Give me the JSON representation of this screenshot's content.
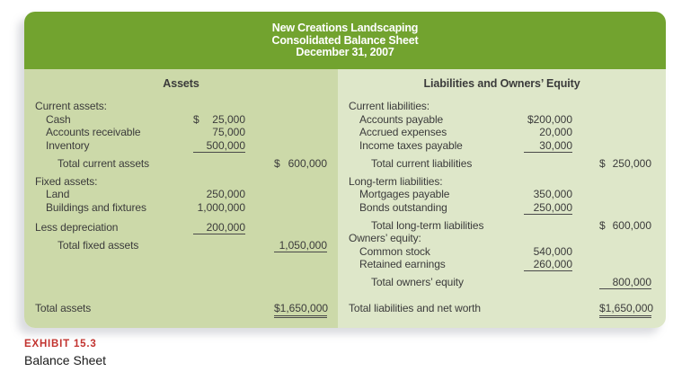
{
  "title": {
    "line1": "New Creations Landscaping",
    "line2": "Consolidated Balance Sheet",
    "line3": "December 31, 2007"
  },
  "colors": {
    "header_green": "#72a32f",
    "panel_left_sage": "#ccd9a9",
    "panel_right_sage": "#dee7c9",
    "text": "#3b3b3b",
    "exhibit_red": "#c2332f"
  },
  "left": {
    "heading": "Assets",
    "rows": [
      {
        "label": "Current assets:",
        "indent": 0
      },
      {
        "label": "Cash",
        "indent": 1,
        "amount": {
          "col": "inner",
          "split": true,
          "currency": "$",
          "value": "25,000"
        }
      },
      {
        "label": "Accounts receivable",
        "indent": 1,
        "amount": {
          "col": "inner",
          "display": "75,000"
        }
      },
      {
        "label": "Inventory",
        "indent": 1,
        "amount": {
          "col": "inner",
          "display": "500,000",
          "underline": "single"
        }
      },
      {
        "label": "Total current assets",
        "indent": 2,
        "amount": {
          "col": "outer",
          "split": true,
          "currency": "$",
          "value": "600,000"
        }
      },
      {
        "label": "Fixed assets:",
        "indent": 0,
        "gap": "section"
      },
      {
        "label": "Land",
        "indent": 1,
        "amount": {
          "col": "inner",
          "display": "250,000"
        }
      },
      {
        "label": "Buildings and fixtures",
        "indent": 1,
        "amount": {
          "col": "inner",
          "display": "1,000,000"
        }
      },
      {
        "label": "Less depreciation",
        "indent": 0,
        "gap": "para",
        "amount": {
          "col": "inner",
          "display": "200,000",
          "underline": "single"
        }
      },
      {
        "label": "Total fixed assets",
        "indent": 2,
        "amount": {
          "col": "outer",
          "display": "1,050,000",
          "underline": "single"
        }
      },
      {
        "label": "Total assets",
        "indent": 0,
        "pin": "bottom",
        "amount": {
          "col": "outer",
          "display": "$1,650,000",
          "underline": "double"
        }
      }
    ]
  },
  "right": {
    "heading": "Liabilities and Owners’ Equity",
    "rows": [
      {
        "label": "Current liabilities:",
        "indent": 0
      },
      {
        "label": "Accounts payable",
        "indent": 1,
        "amount": {
          "col": "inner",
          "display": "$200,000"
        }
      },
      {
        "label": "Accrued expenses",
        "indent": 1,
        "amount": {
          "col": "inner",
          "display": "20,000"
        }
      },
      {
        "label": "Income taxes payable",
        "indent": 1,
        "amount": {
          "col": "inner",
          "display": "30,000",
          "underline": "single"
        }
      },
      {
        "label": "Total current liabilities",
        "indent": 2,
        "amount": {
          "col": "outer",
          "split": true,
          "currency": "$",
          "value": "250,000"
        }
      },
      {
        "label": "Long-term liabilities:",
        "indent": 0,
        "gap": "section"
      },
      {
        "label": "Mortgages payable",
        "indent": 1,
        "amount": {
          "col": "inner",
          "display": "350,000"
        }
      },
      {
        "label": "Bonds outstanding",
        "indent": 1,
        "amount": {
          "col": "inner",
          "display": "250,000",
          "underline": "single"
        }
      },
      {
        "label": "Total long-term liabilities",
        "indent": 2,
        "amount": {
          "col": "outer",
          "split": true,
          "currency": "$",
          "value": "600,000"
        }
      },
      {
        "label": "Owners’ equity:",
        "indent": 0
      },
      {
        "label": "Common stock",
        "indent": 1,
        "amount": {
          "col": "inner",
          "display": "540,000"
        }
      },
      {
        "label": "Retained earnings",
        "indent": 1,
        "amount": {
          "col": "inner",
          "display": "260,000",
          "underline": "single"
        }
      },
      {
        "label": "Total owners’ equity",
        "indent": 2,
        "amount": {
          "col": "outer",
          "display": "800,000",
          "underline": "single"
        }
      },
      {
        "label": "Total liabilities and net worth",
        "indent": 0,
        "pin": "bottom",
        "amount": {
          "col": "outer",
          "display": "$1,650,000",
          "underline": "double"
        }
      }
    ]
  },
  "caption": {
    "exhibit": "EXHIBIT 15.3",
    "title": "Balance Sheet"
  }
}
